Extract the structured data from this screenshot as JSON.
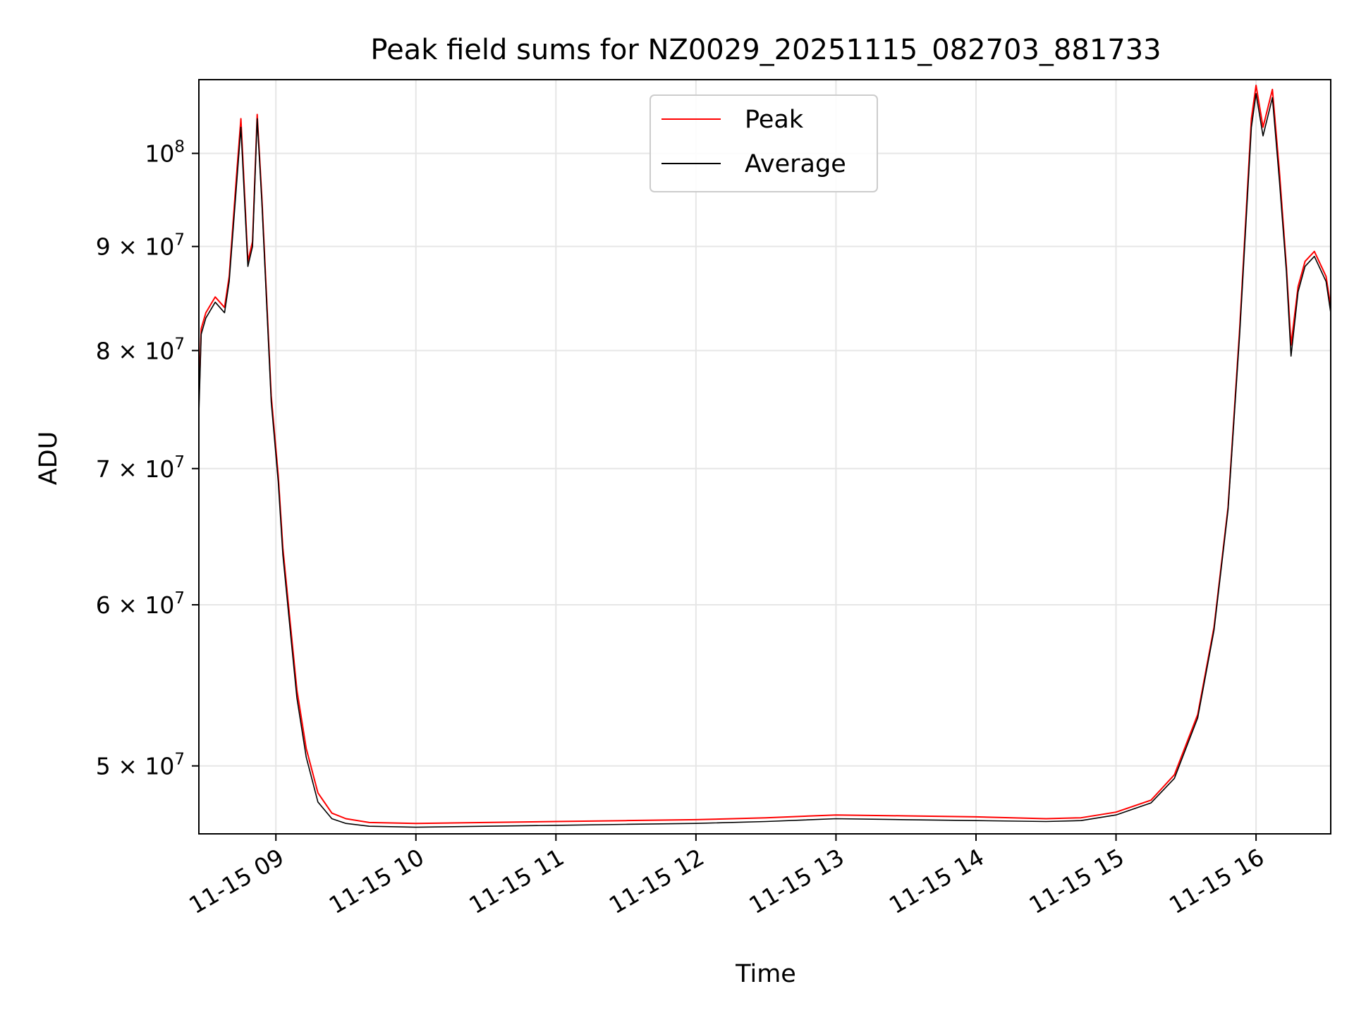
{
  "chart_data": {
    "type": "line",
    "title": "Peak field sums for NZ0029_20251115_082703_881733",
    "xlabel": "Time",
    "ylabel": "ADU",
    "x_scale": "time",
    "y_scale": "log",
    "xlim": [
      "2025-11-15 08:27",
      "2025-11-15 16:32"
    ],
    "ylim": [
      46300000,
      108700000
    ],
    "grid": true,
    "legend_position": "top-center",
    "x_ticks": [
      {
        "value": "2025-11-15 09:00",
        "label": "11-15 09"
      },
      {
        "value": "2025-11-15 10:00",
        "label": "11-15 10"
      },
      {
        "value": "2025-11-15 11:00",
        "label": "11-15 11"
      },
      {
        "value": "2025-11-15 12:00",
        "label": "11-15 12"
      },
      {
        "value": "2025-11-15 13:00",
        "label": "11-15 13"
      },
      {
        "value": "2025-11-15 14:00",
        "label": "11-15 14"
      },
      {
        "value": "2025-11-15 15:00",
        "label": "11-15 15"
      },
      {
        "value": "2025-11-15 16:00",
        "label": "11-15 16"
      }
    ],
    "y_ticks": [
      {
        "value": 100000000,
        "base": "10",
        "exp": "8"
      },
      {
        "value": 90000000,
        "base": "9 × 10",
        "exp": "7"
      },
      {
        "value": 80000000,
        "base": "8 × 10",
        "exp": "7"
      },
      {
        "value": 70000000,
        "base": "7 × 10",
        "exp": "7"
      },
      {
        "value": 60000000,
        "base": "6 × 10",
        "exp": "7"
      },
      {
        "value": 50000000,
        "base": "5 × 10",
        "exp": "7"
      }
    ],
    "series": [
      {
        "name": "Peak",
        "color": "#ff0000"
      },
      {
        "name": "Average",
        "color": "#000000"
      }
    ],
    "x": [
      "2025-11-15 08:27",
      "2025-11-15 08:28",
      "2025-11-15 08:30",
      "2025-11-15 08:34",
      "2025-11-15 08:38",
      "2025-11-15 08:40",
      "2025-11-15 08:43",
      "2025-11-15 08:45",
      "2025-11-15 08:48",
      "2025-11-15 08:50",
      "2025-11-15 08:52",
      "2025-11-15 08:54",
      "2025-11-15 08:56",
      "2025-11-15 08:58",
      "2025-11-15 09:01",
      "2025-11-15 09:03",
      "2025-11-15 09:06",
      "2025-11-15 09:09",
      "2025-11-15 09:13",
      "2025-11-15 09:18",
      "2025-11-15 09:24",
      "2025-11-15 09:30",
      "2025-11-15 09:40",
      "2025-11-15 10:00",
      "2025-11-15 10:30",
      "2025-11-15 11:00",
      "2025-11-15 11:30",
      "2025-11-15 12:00",
      "2025-11-15 12:30",
      "2025-11-15 13:00",
      "2025-11-15 13:30",
      "2025-11-15 14:00",
      "2025-11-15 14:30",
      "2025-11-15 14:45",
      "2025-11-15 15:00",
      "2025-11-15 15:15",
      "2025-11-15 15:25",
      "2025-11-15 15:35",
      "2025-11-15 15:42",
      "2025-11-15 15:48",
      "2025-11-15 15:53",
      "2025-11-15 15:58",
      "2025-11-15 16:00",
      "2025-11-15 16:03",
      "2025-11-15 16:07",
      "2025-11-15 16:10",
      "2025-11-15 16:13",
      "2025-11-15 16:15",
      "2025-11-15 16:18",
      "2025-11-15 16:21",
      "2025-11-15 16:25",
      "2025-11-15 16:30",
      "2025-11-15 16:32"
    ],
    "peak": [
      75500000,
      82000000,
      83500000,
      85000000,
      84000000,
      87000000,
      97000000,
      104000000,
      88500000,
      90500000,
      104500000,
      95000000,
      85000000,
      76000000,
      69500000,
      64000000,
      59000000,
      54500000,
      51000000,
      48500000,
      47400000,
      47100000,
      46900000,
      46850000,
      46900000,
      46950000,
      47000000,
      47050000,
      47150000,
      47300000,
      47250000,
      47200000,
      47100000,
      47150000,
      47450000,
      48100000,
      49500000,
      53000000,
      58500000,
      67000000,
      82000000,
      104000000,
      108000000,
      103000000,
      107500000,
      98000000,
      88000000,
      80500000,
      86000000,
      88500000,
      89500000,
      87000000,
      84000000
    ],
    "average": [
      74500000,
      81500000,
      83000000,
      84500000,
      83500000,
      86500000,
      96000000,
      103000000,
      88000000,
      90000000,
      104000000,
      94500000,
      84500000,
      75500000,
      69000000,
      63500000,
      58500000,
      54000000,
      50500000,
      48000000,
      47100000,
      46850000,
      46700000,
      46650000,
      46700000,
      46750000,
      46800000,
      46850000,
      46950000,
      47100000,
      47050000,
      47000000,
      46950000,
      47000000,
      47300000,
      47950000,
      49300000,
      52800000,
      58300000,
      66800000,
      81500000,
      103000000,
      107000000,
      102000000,
      106500000,
      97000000,
      87500000,
      79500000,
      85500000,
      88000000,
      89000000,
      86500000,
      83500000
    ]
  },
  "legend": {
    "peak_label": "Peak",
    "average_label": "Average"
  }
}
